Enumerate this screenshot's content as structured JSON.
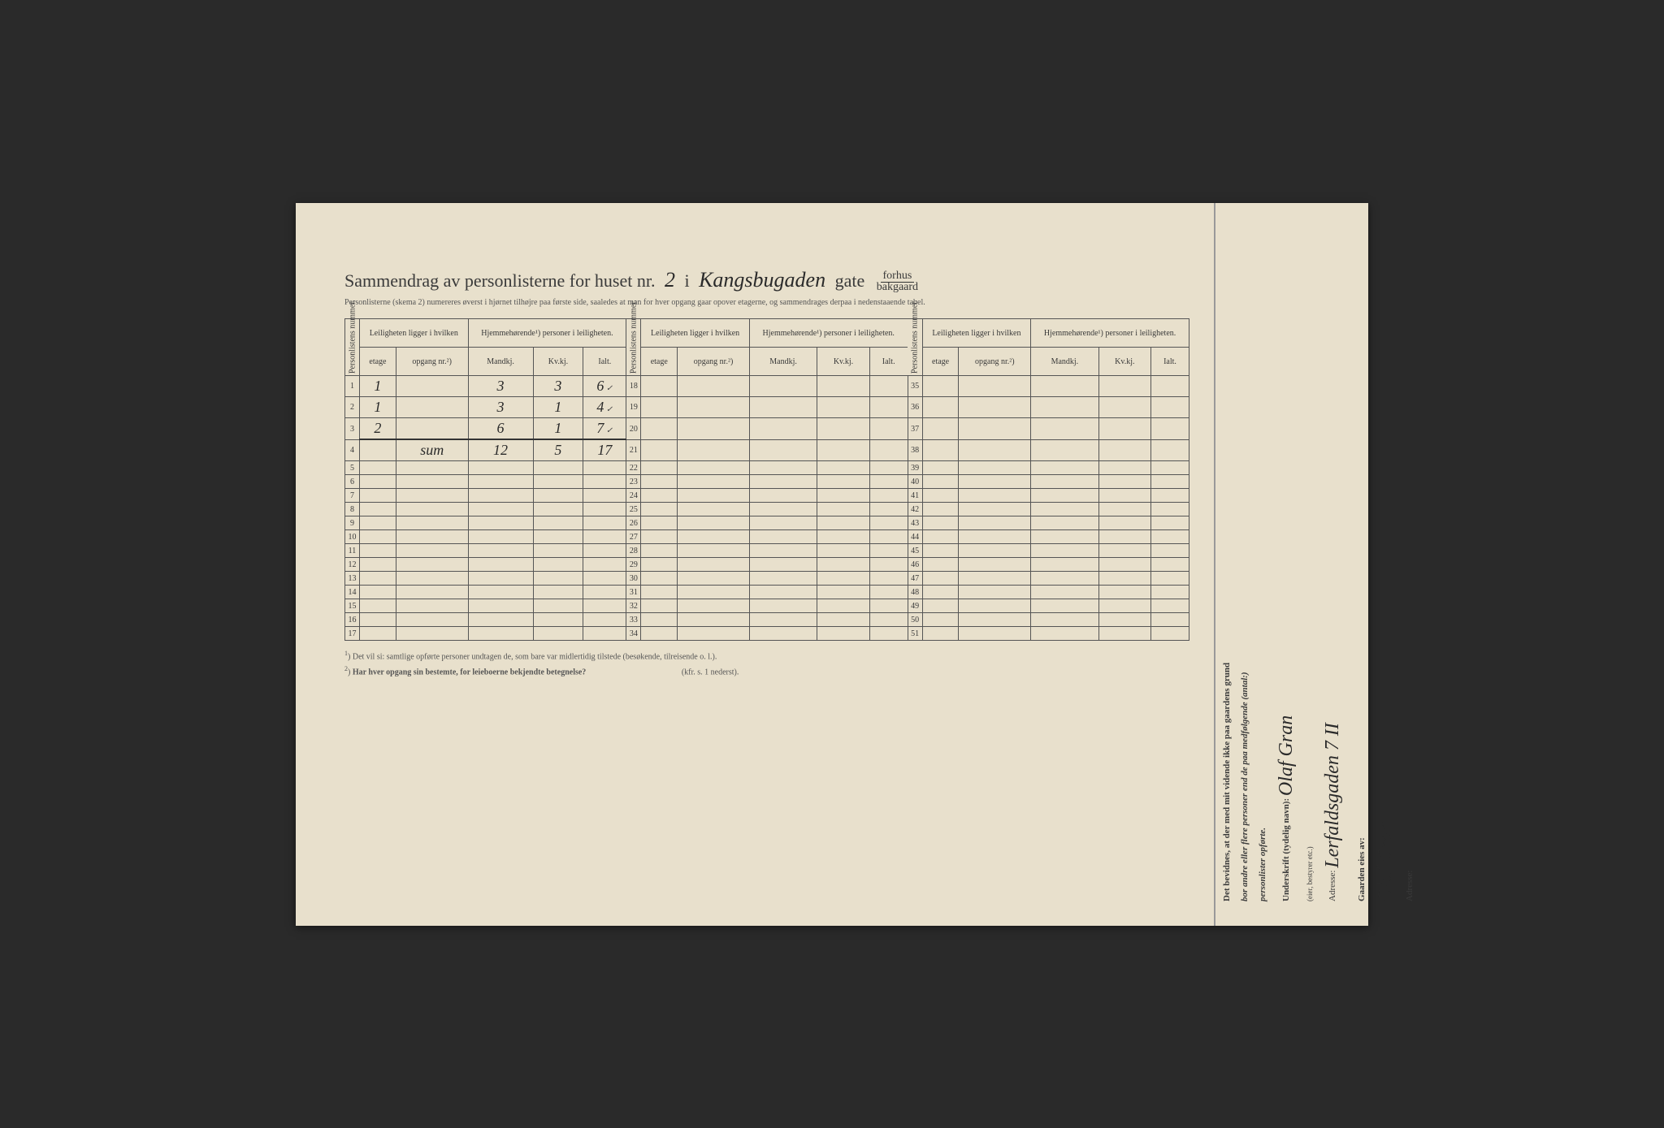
{
  "colors": {
    "paper": "#e8e0cc",
    "ink_print": "#3a3a3a",
    "ink_hand": "#2a2a2a",
    "border": "#555555",
    "background": "#2a2a2a"
  },
  "title": {
    "prefix": "Sammendrag av personlisterne for huset nr.",
    "house_nr": "2",
    "mid": "i",
    "street_hand": "Kangsbugaden",
    "street_suffix": "gate",
    "fraction_top": "forhus",
    "fraction_bot": "bakgaard"
  },
  "subtitle": "Personlisterne (skema 2) numereres øverst i hjørnet tilhøjre paa første side, saaledes at man for hver opgang gaar opover etagerne, og sammendrages derpaa i nedenstaaende tabel.",
  "headers": {
    "personlistens_nummer": "Personlistens nummer.",
    "leilighet": "Leiligheten ligger i hvilken",
    "hjemme": "Hjemmehørende¹) personer i leiligheten.",
    "etage": "etage",
    "opgang": "opgang nr.²)",
    "mandkj": "Mandkj.",
    "kvkj": "Kv.kj.",
    "ialt": "Ialt."
  },
  "rows_block1": [
    {
      "n": "1",
      "etage": "1",
      "opgang": "",
      "m": "3",
      "k": "3",
      "i": "6",
      "chk": "✓"
    },
    {
      "n": "2",
      "etage": "1",
      "opgang": "",
      "m": "3",
      "k": "1",
      "i": "4",
      "chk": "✓"
    },
    {
      "n": "3",
      "etage": "2",
      "opgang": "",
      "m": "6",
      "k": "1",
      "i": "7",
      "chk": "✓"
    },
    {
      "n": "4",
      "etage": "",
      "opgang": "sum",
      "m": "12",
      "k": "5",
      "i": "17",
      "chk": ""
    },
    {
      "n": "5",
      "etage": "",
      "opgang": "",
      "m": "",
      "k": "",
      "i": "",
      "chk": ""
    },
    {
      "n": "6",
      "etage": "",
      "opgang": "",
      "m": "",
      "k": "",
      "i": "",
      "chk": ""
    },
    {
      "n": "7",
      "etage": "",
      "opgang": "",
      "m": "",
      "k": "",
      "i": "",
      "chk": ""
    },
    {
      "n": "8",
      "etage": "",
      "opgang": "",
      "m": "",
      "k": "",
      "i": "",
      "chk": ""
    },
    {
      "n": "9",
      "etage": "",
      "opgang": "",
      "m": "",
      "k": "",
      "i": "",
      "chk": ""
    },
    {
      "n": "10",
      "etage": "",
      "opgang": "",
      "m": "",
      "k": "",
      "i": "",
      "chk": ""
    },
    {
      "n": "11",
      "etage": "",
      "opgang": "",
      "m": "",
      "k": "",
      "i": "",
      "chk": ""
    },
    {
      "n": "12",
      "etage": "",
      "opgang": "",
      "m": "",
      "k": "",
      "i": "",
      "chk": ""
    },
    {
      "n": "13",
      "etage": "",
      "opgang": "",
      "m": "",
      "k": "",
      "i": "",
      "chk": ""
    },
    {
      "n": "14",
      "etage": "",
      "opgang": "",
      "m": "",
      "k": "",
      "i": "",
      "chk": ""
    },
    {
      "n": "15",
      "etage": "",
      "opgang": "",
      "m": "",
      "k": "",
      "i": "",
      "chk": ""
    },
    {
      "n": "16",
      "etage": "",
      "opgang": "",
      "m": "",
      "k": "",
      "i": "",
      "chk": ""
    },
    {
      "n": "17",
      "etage": "",
      "opgang": "",
      "m": "",
      "k": "",
      "i": "",
      "chk": ""
    }
  ],
  "rows_block2_start": 18,
  "rows_block2_end": 34,
  "rows_block3_start": 35,
  "rows_block3_end": 51,
  "footnotes": {
    "f1": "Det vil si: samtlige opførte personer undtagen de, som bare var midlertidig tilstede (besøkende, tilreisende o. l.).",
    "f2": "Har hver opgang sin bestemte, for leieboerne bekjendte betegnelse?",
    "f2_ref": "(kfr. s. 1 nederst)."
  },
  "side": {
    "cert_text1": "Det bevidnes, at der med mit vidende ikke paa gaardens grund",
    "cert_text2": "bor andre eller flere personer end de paa medfølgende (antal:)",
    "cert_text3": "personlister opførte.",
    "underskrift_label": "Underskrift (tydelig navn):",
    "underskrift_role": "(eier, bestyrer etc.)",
    "signature": "Olaf Gran",
    "adresse_label": "Adresse:",
    "adresse_value": "Lerfaldsgaden 7 II",
    "owner_label": "Gaarden eies av:",
    "owner_signature": "Olaf Gran",
    "owner_adresse_label": "Adresse:"
  }
}
